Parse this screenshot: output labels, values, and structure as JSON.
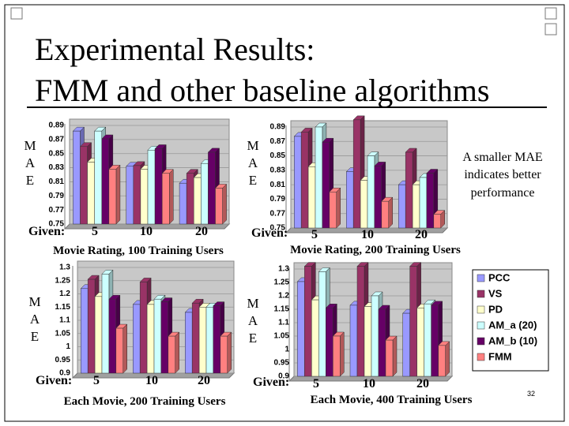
{
  "slide": {
    "title_lines": [
      "Experimental Results:",
      "FMM and other baseline algorithms"
    ],
    "note_lines": [
      "A smaller MAE",
      "indicates better",
      "performance"
    ],
    "page_number": "32"
  },
  "chart_data": [
    {
      "type": "bar",
      "ylabel": [
        "M",
        "A",
        "E"
      ],
      "given_label": "Given:",
      "xlabel": "Movie Rating, 100 Training Users",
      "categories": [
        "5",
        "10",
        "20"
      ],
      "ylim": [
        0.75,
        0.89
      ],
      "yticks": [
        0.75,
        0.77,
        0.79,
        0.81,
        0.83,
        0.85,
        0.87,
        0.89
      ],
      "grid": true,
      "series": [
        {
          "values": [
            0.882,
            0.832,
            0.808
          ]
        },
        {
          "values": [
            0.86,
            0.833,
            0.822
          ]
        },
        {
          "values": [
            0.838,
            0.828,
            0.816
          ]
        },
        {
          "values": [
            0.882,
            0.855,
            0.836
          ]
        },
        {
          "values": [
            0.871,
            0.857,
            0.852
          ]
        },
        {
          "values": [
            0.828,
            0.822,
            0.801
          ]
        }
      ]
    },
    {
      "type": "bar",
      "ylabel": [
        "M",
        "A",
        "E"
      ],
      "given_label": "Given:",
      "xlabel": "Movie Rating, 200 Training Users",
      "categories": [
        "5",
        "10",
        "20"
      ],
      "ylim": [
        0.75,
        0.89
      ],
      "yticks": [
        0.75,
        0.77,
        0.79,
        0.81,
        0.83,
        0.85,
        0.87,
        0.89
      ],
      "grid": true,
      "series": [
        {
          "values": [
            0.877,
            0.828,
            0.81
          ]
        },
        {
          "values": [
            0.883,
            0.9,
            0.855
          ]
        },
        {
          "values": [
            0.835,
            0.816,
            0.81
          ]
        },
        {
          "values": [
            0.89,
            0.85,
            0.82
          ]
        },
        {
          "values": [
            0.869,
            0.836,
            0.826
          ]
        },
        {
          "values": [
            0.8,
            0.787,
            0.769
          ]
        }
      ]
    },
    {
      "type": "bar",
      "ylabel": [
        "M",
        "A",
        "E"
      ],
      "given_label": "Given:",
      "xlabel": "Each Movie, 200 Training Users",
      "categories": [
        "5",
        "10",
        "20"
      ],
      "ylim": [
        0.9,
        1.3
      ],
      "yticks": [
        0.9,
        0.95,
        1,
        1.05,
        1.1,
        1.15,
        1.2,
        1.25,
        1.3
      ],
      "grid": true,
      "series": [
        {
          "values": [
            1.22,
            1.16,
            1.13
          ]
        },
        {
          "values": [
            1.255,
            1.245,
            1.165
          ]
        },
        {
          "values": [
            1.19,
            1.16,
            1.15
          ]
        },
        {
          "values": [
            1.275,
            1.18,
            1.15
          ]
        },
        {
          "values": [
            1.18,
            1.17,
            1.155
          ]
        },
        {
          "values": [
            1.07,
            1.04,
            1.04
          ]
        }
      ]
    },
    {
      "type": "bar",
      "ylabel": [
        "M",
        "A",
        "E"
      ],
      "given_label": "Given:",
      "xlabel": "Each Movie, 400 Training Users",
      "categories": [
        "5",
        "10",
        "20"
      ],
      "ylim": [
        0.9,
        1.3
      ],
      "yticks": [
        0.9,
        0.95,
        1,
        1.05,
        1.1,
        1.15,
        1.2,
        1.25,
        1.3
      ],
      "grid": true,
      "legend": "right",
      "series": [
        {
          "name": "PCC",
          "color": "#9999ff",
          "values": [
            1.253,
            1.165,
            1.135
          ]
        },
        {
          "name": "VS",
          "color": "#993366",
          "values": [
            1.31,
            1.31,
            1.31
          ]
        },
        {
          "name": "PD",
          "color": "#ffffcc",
          "values": [
            1.185,
            1.16,
            1.155
          ]
        },
        {
          "name": "AM_a (20)",
          "color": "#ccffff",
          "values": [
            1.29,
            1.2,
            1.17
          ]
        },
        {
          "name": "AM_b (10)",
          "color": "#660066",
          "values": [
            1.155,
            1.15,
            1.165
          ]
        },
        {
          "name": "FMM",
          "color": "#ff8080",
          "values": [
            1.05,
            1.035,
            1.015
          ]
        }
      ]
    }
  ]
}
